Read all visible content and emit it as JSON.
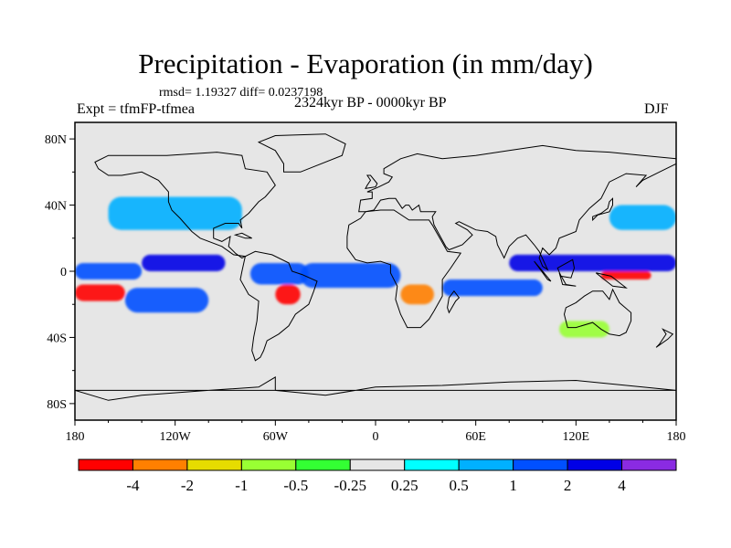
{
  "title": "Precipitation - Evaporation (in mm/day)",
  "stats": "rmsd= 1.19327 diff= 0.0237198",
  "left_string": "Expt = tfmFP-tfmea",
  "center_string": "2324kyr BP - 0000kyr BP",
  "right_string": "DJF",
  "map": {
    "lon_range": [
      -180,
      180
    ],
    "lat_range": [
      -90,
      90
    ],
    "lon_ticks": [
      {
        "value": -180,
        "label": "180"
      },
      {
        "value": -120,
        "label": "120W"
      },
      {
        "value": -60,
        "label": "60W"
      },
      {
        "value": 0,
        "label": "0"
      },
      {
        "value": 60,
        "label": "60E"
      },
      {
        "value": 120,
        "label": "120E"
      },
      {
        "value": 180,
        "label": "180"
      }
    ],
    "lat_ticks": [
      {
        "value": 80,
        "label": "80N"
      },
      {
        "value": 40,
        "label": "40N"
      },
      {
        "value": 0,
        "label": "0"
      },
      {
        "value": -40,
        "label": "40S"
      },
      {
        "value": -80,
        "label": "80S"
      }
    ],
    "background_color": "#e6e6e6"
  },
  "colorbar": {
    "colors": [
      "#ff0000",
      "#ff8000",
      "#e6dc00",
      "#99ff33",
      "#33ff33",
      "#e6e6e6",
      "#00ffff",
      "#00b0ff",
      "#0050ff",
      "#0000e6",
      "#8a2be2"
    ],
    "labels": [
      "-4",
      "-2",
      "-1",
      "-0.5",
      "-0.25",
      "0.25",
      "0.5",
      "1",
      "2",
      "4"
    ]
  },
  "chart_data": {
    "type": "heatmap",
    "title": "Precipitation - Evaporation (in mm/day)",
    "units": "mm/day",
    "levels": [
      -4,
      -2,
      -1,
      -0.5,
      -0.25,
      0.25,
      0.5,
      1,
      2,
      4
    ],
    "regions": [
      {
        "lon": [
          -180,
          -140
        ],
        "lat": [
          -5,
          5
        ],
        "level": 2
      },
      {
        "lon": [
          -180,
          -150
        ],
        "lat": [
          -18,
          -8
        ],
        "level": -4
      },
      {
        "lon": [
          -150,
          -100
        ],
        "lat": [
          -25,
          -10
        ],
        "level": 2
      },
      {
        "lon": [
          -140,
          -90
        ],
        "lat": [
          0,
          10
        ],
        "level": 4
      },
      {
        "lon": [
          -160,
          -80
        ],
        "lat": [
          25,
          45
        ],
        "level": 1
      },
      {
        "lon": [
          -60,
          -45
        ],
        "lat": [
          -20,
          -8
        ],
        "level": -4
      },
      {
        "lon": [
          -75,
          -40
        ],
        "lat": [
          -8,
          5
        ],
        "level": 2
      },
      {
        "lon": [
          -45,
          15
        ],
        "lat": [
          -10,
          5
        ],
        "level": 2
      },
      {
        "lon": [
          15,
          35
        ],
        "lat": [
          -20,
          -8
        ],
        "level": -2
      },
      {
        "lon": [
          40,
          100
        ],
        "lat": [
          -15,
          -5
        ],
        "level": 2
      },
      {
        "lon": [
          80,
          180
        ],
        "lat": [
          0,
          10
        ],
        "level": 4
      },
      {
        "lon": [
          135,
          165
        ],
        "lat": [
          -5,
          0
        ],
        "level": -4
      },
      {
        "lon": [
          140,
          180
        ],
        "lat": [
          25,
          40
        ],
        "level": 1
      },
      {
        "lon": [
          110,
          140
        ],
        "lat": [
          -40,
          -30
        ],
        "level": -0.5
      }
    ]
  }
}
